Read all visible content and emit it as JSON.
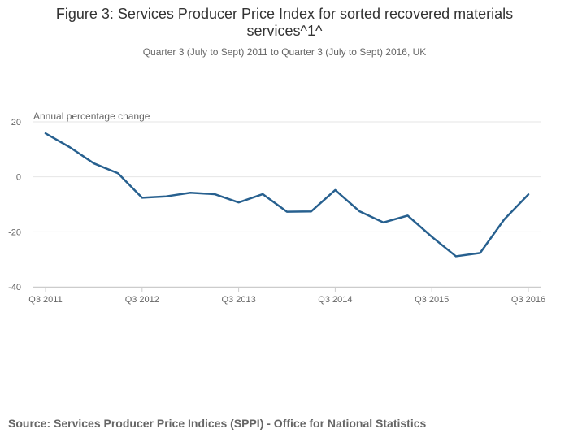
{
  "chart_data": {
    "type": "line",
    "title_lines": [
      "Figure 3: Services Producer Price Index for sorted recovered materials",
      "services^1^"
    ],
    "subtitle": "Quarter 3 (July to Sept) 2011 to Quarter 3 (July to Sept) 2016, UK",
    "ylabel": "Annual percentage change",
    "xlabel": "",
    "ylim": [
      -40,
      20
    ],
    "yticks": [
      20,
      0,
      -20,
      -40
    ],
    "yticks_labels": [
      "20",
      "0",
      "-20",
      "-40"
    ],
    "x_tick_labels": [
      {
        "index": 0,
        "label": "Q3 2011"
      },
      {
        "index": 4,
        "label": "Q3 2012"
      },
      {
        "index": 8,
        "label": "Q3 2013"
      },
      {
        "index": 12,
        "label": "Q3 2014"
      },
      {
        "index": 16,
        "label": "Q3 2015"
      },
      {
        "index": 20,
        "label": "Q3 2016"
      }
    ],
    "categories": [
      "Q3 2011",
      "Q4 2011",
      "Q1 2012",
      "Q2 2012",
      "Q3 2012",
      "Q4 2012",
      "Q1 2013",
      "Q2 2013",
      "Q3 2013",
      "Q4 2013",
      "Q1 2014",
      "Q2 2014",
      "Q3 2014",
      "Q4 2014",
      "Q1 2015",
      "Q2 2015",
      "Q3 2015",
      "Q4 2015",
      "Q1 2016",
      "Q2 2016",
      "Q3 2016"
    ],
    "series": [
      {
        "name": "Sorted recovered materials services",
        "color": "#27608f",
        "values": [
          15.8,
          10.8,
          4.9,
          1.3,
          -7.6,
          -7.1,
          -5.8,
          -6.3,
          -9.3,
          -6.3,
          -12.7,
          -12.6,
          -4.8,
          -12.5,
          -16.6,
          -14.1,
          -21.8,
          -28.9,
          -27.7,
          -15.5,
          -6.4
        ]
      }
    ],
    "grid": true,
    "legend": "none"
  },
  "source": "Source: Services Producer Price Indices (SPPI) - Office for National Statistics"
}
